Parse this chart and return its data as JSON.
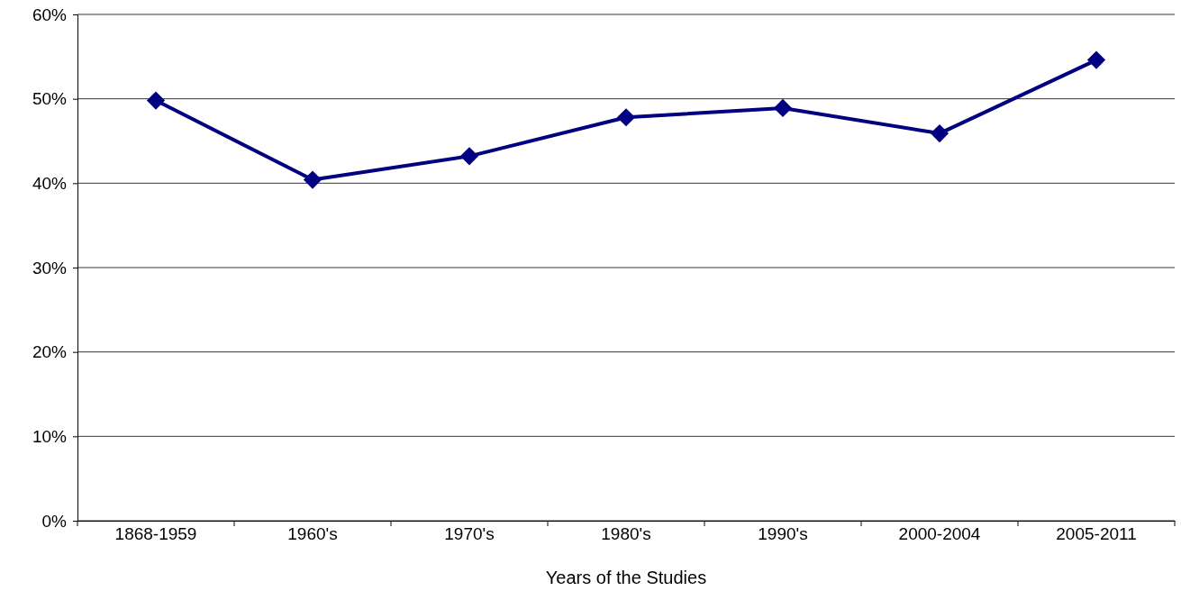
{
  "chart_data": {
    "type": "line",
    "xlabel": "Years of the Studies",
    "categories": [
      "1868-1959",
      "1960's",
      "1970's",
      "1980's",
      "1990's",
      "2000-2004",
      "2005-2011"
    ],
    "series": [
      {
        "color": "#000080",
        "values": [
          49.8,
          40.4,
          43.2,
          47.8,
          48.9,
          45.9,
          54.6
        ]
      }
    ],
    "ylim": [
      0,
      60
    ],
    "yticks": [
      {
        "value": 0,
        "label": "0%"
      },
      {
        "value": 10,
        "label": "10%"
      },
      {
        "value": 20,
        "label": "20%"
      },
      {
        "value": 30,
        "label": "30%"
      },
      {
        "value": 40,
        "label": "40%"
      },
      {
        "value": 50,
        "label": "50%"
      },
      {
        "value": 60,
        "label": "60%"
      }
    ],
    "grid": "y",
    "marker": "diamond",
    "line_style": "solid"
  }
}
